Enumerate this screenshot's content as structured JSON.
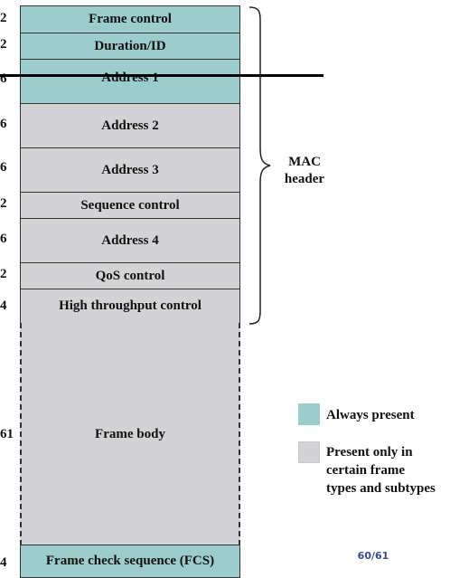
{
  "fields": [
    {
      "label": "Frame control",
      "size": "2",
      "type": "always"
    },
    {
      "label": "Duration/ID",
      "size": "2",
      "type": "always"
    },
    {
      "label": "Address 1",
      "size": "6",
      "type": "always"
    },
    {
      "label": "Address 2",
      "size": "6",
      "type": "optional"
    },
    {
      "label": "Address 3",
      "size": "6",
      "type": "optional"
    },
    {
      "label": "Sequence control",
      "size": "2",
      "type": "optional"
    },
    {
      "label": "Address 4",
      "size": "6",
      "type": "optional"
    },
    {
      "label": "QoS control",
      "size": "2",
      "type": "optional"
    },
    {
      "label": "High throughput control",
      "size": "4",
      "type": "optional"
    },
    {
      "label": "Frame body",
      "size": "61",
      "type": "optional"
    },
    {
      "label": "Frame check sequence (FCS)",
      "size": "4",
      "type": "always"
    }
  ],
  "brace_label": {
    "line1": "MAC",
    "line2": "header"
  },
  "legend": {
    "always": "Always present",
    "optional_line1": "Present only in",
    "optional_line2": "certain frame",
    "optional_line3": "types and subtypes"
  },
  "colors": {
    "always": "#9dcccc",
    "optional": "#d3d3d5"
  },
  "page_number": "60/61"
}
